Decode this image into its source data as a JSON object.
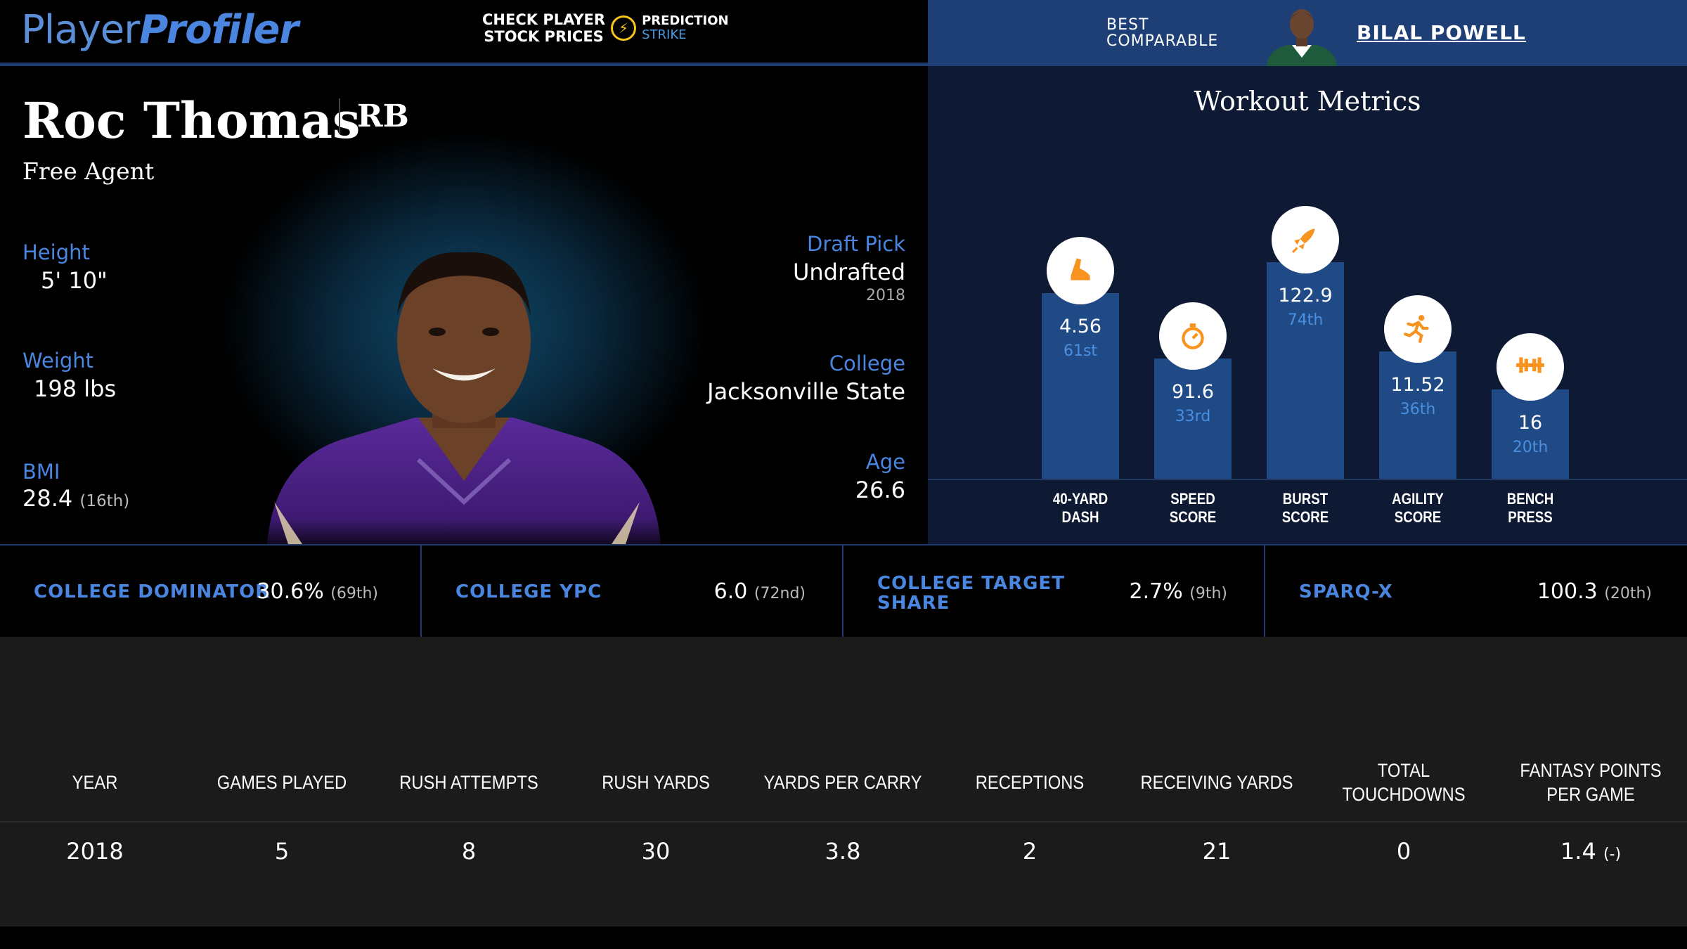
{
  "header": {
    "logo_part1": "Player",
    "logo_part2": "Profiler",
    "promo_line1": "CHECK PLAYER",
    "promo_line2": "STOCK PRICES",
    "promo_brand1": "PREDICTION",
    "promo_brand2": "STRIKE",
    "best_line1": "BEST",
    "best_line2": "COMPARABLE",
    "best_comparable_name": "BILAL POWELL"
  },
  "player": {
    "name": "Roc Thomas",
    "position": "RB",
    "team": "Free Agent",
    "height_label": "Height",
    "height": "5' 10\"",
    "weight_label": "Weight",
    "weight": "198 lbs",
    "bmi_label": "BMI",
    "bmi": "28.4",
    "bmi_rank": "(16th)",
    "draft_label": "Draft Pick",
    "draft": "Undrafted",
    "draft_year": "2018",
    "college_label": "College",
    "college": "Jacksonville State",
    "age_label": "Age",
    "age": "26.6"
  },
  "workout": {
    "title": "Workout Metrics",
    "metrics": [
      {
        "value": "4.56",
        "pct_label": "61st",
        "percentile": 61,
        "name1": "40-YARD",
        "name2": "DASH",
        "icon": "shoe-icon"
      },
      {
        "value": "91.6",
        "pct_label": "33rd",
        "percentile": 33,
        "name1": "SPEED",
        "name2": "SCORE",
        "icon": "stopwatch-icon"
      },
      {
        "value": "122.9",
        "pct_label": "74th",
        "percentile": 74,
        "name1": "BURST",
        "name2": "SCORE",
        "icon": "rocket-icon"
      },
      {
        "value": "11.52",
        "pct_label": "36th",
        "percentile": 36,
        "name1": "AGILITY",
        "name2": "SCORE",
        "icon": "runner-icon"
      },
      {
        "value": "16",
        "pct_label": "20th",
        "percentile": 20,
        "name1": "BENCH",
        "name2": "PRESS",
        "icon": "barbell-icon"
      }
    ],
    "icon_color": "#f7931e",
    "bar_color": "#1f4a85"
  },
  "college_metrics": [
    {
      "label": "COLLEGE DOMINATOR",
      "value": "30.6%",
      "rank": "(69th)"
    },
    {
      "label": "COLLEGE YPC",
      "value": "6.0",
      "rank": "(72nd)"
    },
    {
      "label": "COLLEGE TARGET SHARE",
      "value": "2.7%",
      "rank": "(9th)"
    },
    {
      "label": "SPARQ-X",
      "value": "100.3",
      "rank": "(20th)"
    }
  ],
  "stats_table": {
    "headers": [
      "YEAR",
      "GAMES PLAYED",
      "RUSH ATTEMPTS",
      "RUSH YARDS",
      "YARDS PER CARRY",
      "RECEPTIONS",
      "RECEIVING YARDS",
      "TOTAL TOUCHDOWNS",
      "FANTASY POINTS PER GAME"
    ],
    "rows": [
      [
        "2018",
        "5",
        "8",
        "30",
        "3.8",
        "2",
        "21",
        "0",
        "1.4"
      ]
    ],
    "fppg_rank": "(-)"
  }
}
